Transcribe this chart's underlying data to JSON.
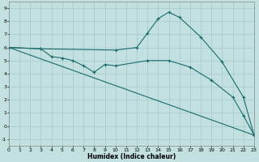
{
  "xlabel": "Humidex (Indice chaleur)",
  "background_color": "#c2e0e0",
  "grid_color": "#a8cccc",
  "line_color": "#1a6b6b",
  "xlim": [
    0,
    23
  ],
  "ylim": [
    -1.5,
    9.5
  ],
  "xticks": [
    0,
    1,
    2,
    3,
    4,
    5,
    6,
    7,
    8,
    9,
    10,
    11,
    12,
    13,
    14,
    15,
    16,
    17,
    18,
    19,
    20,
    21,
    22,
    23
  ],
  "yticks": [
    -1,
    0,
    1,
    2,
    3,
    4,
    5,
    6,
    7,
    8,
    9
  ],
  "series": [
    {
      "x": [
        0,
        3,
        10,
        12,
        13,
        14,
        15,
        16,
        18,
        20,
        22,
        23
      ],
      "y": [
        6.0,
        5.9,
        5.8,
        6.0,
        7.1,
        8.2,
        8.7,
        8.3,
        6.8,
        4.9,
        2.2,
        -0.7
      ]
    },
    {
      "x": [
        0,
        3,
        4,
        5,
        6,
        7,
        8,
        9,
        10,
        13,
        15,
        17,
        19,
        21,
        22,
        23
      ],
      "y": [
        6.0,
        5.9,
        5.3,
        5.2,
        5.0,
        4.6,
        4.1,
        4.7,
        4.6,
        5.0,
        5.0,
        4.5,
        3.5,
        2.2,
        0.8,
        -0.7
      ]
    },
    {
      "x": [
        0,
        23
      ],
      "y": [
        6.0,
        -0.7
      ]
    }
  ]
}
